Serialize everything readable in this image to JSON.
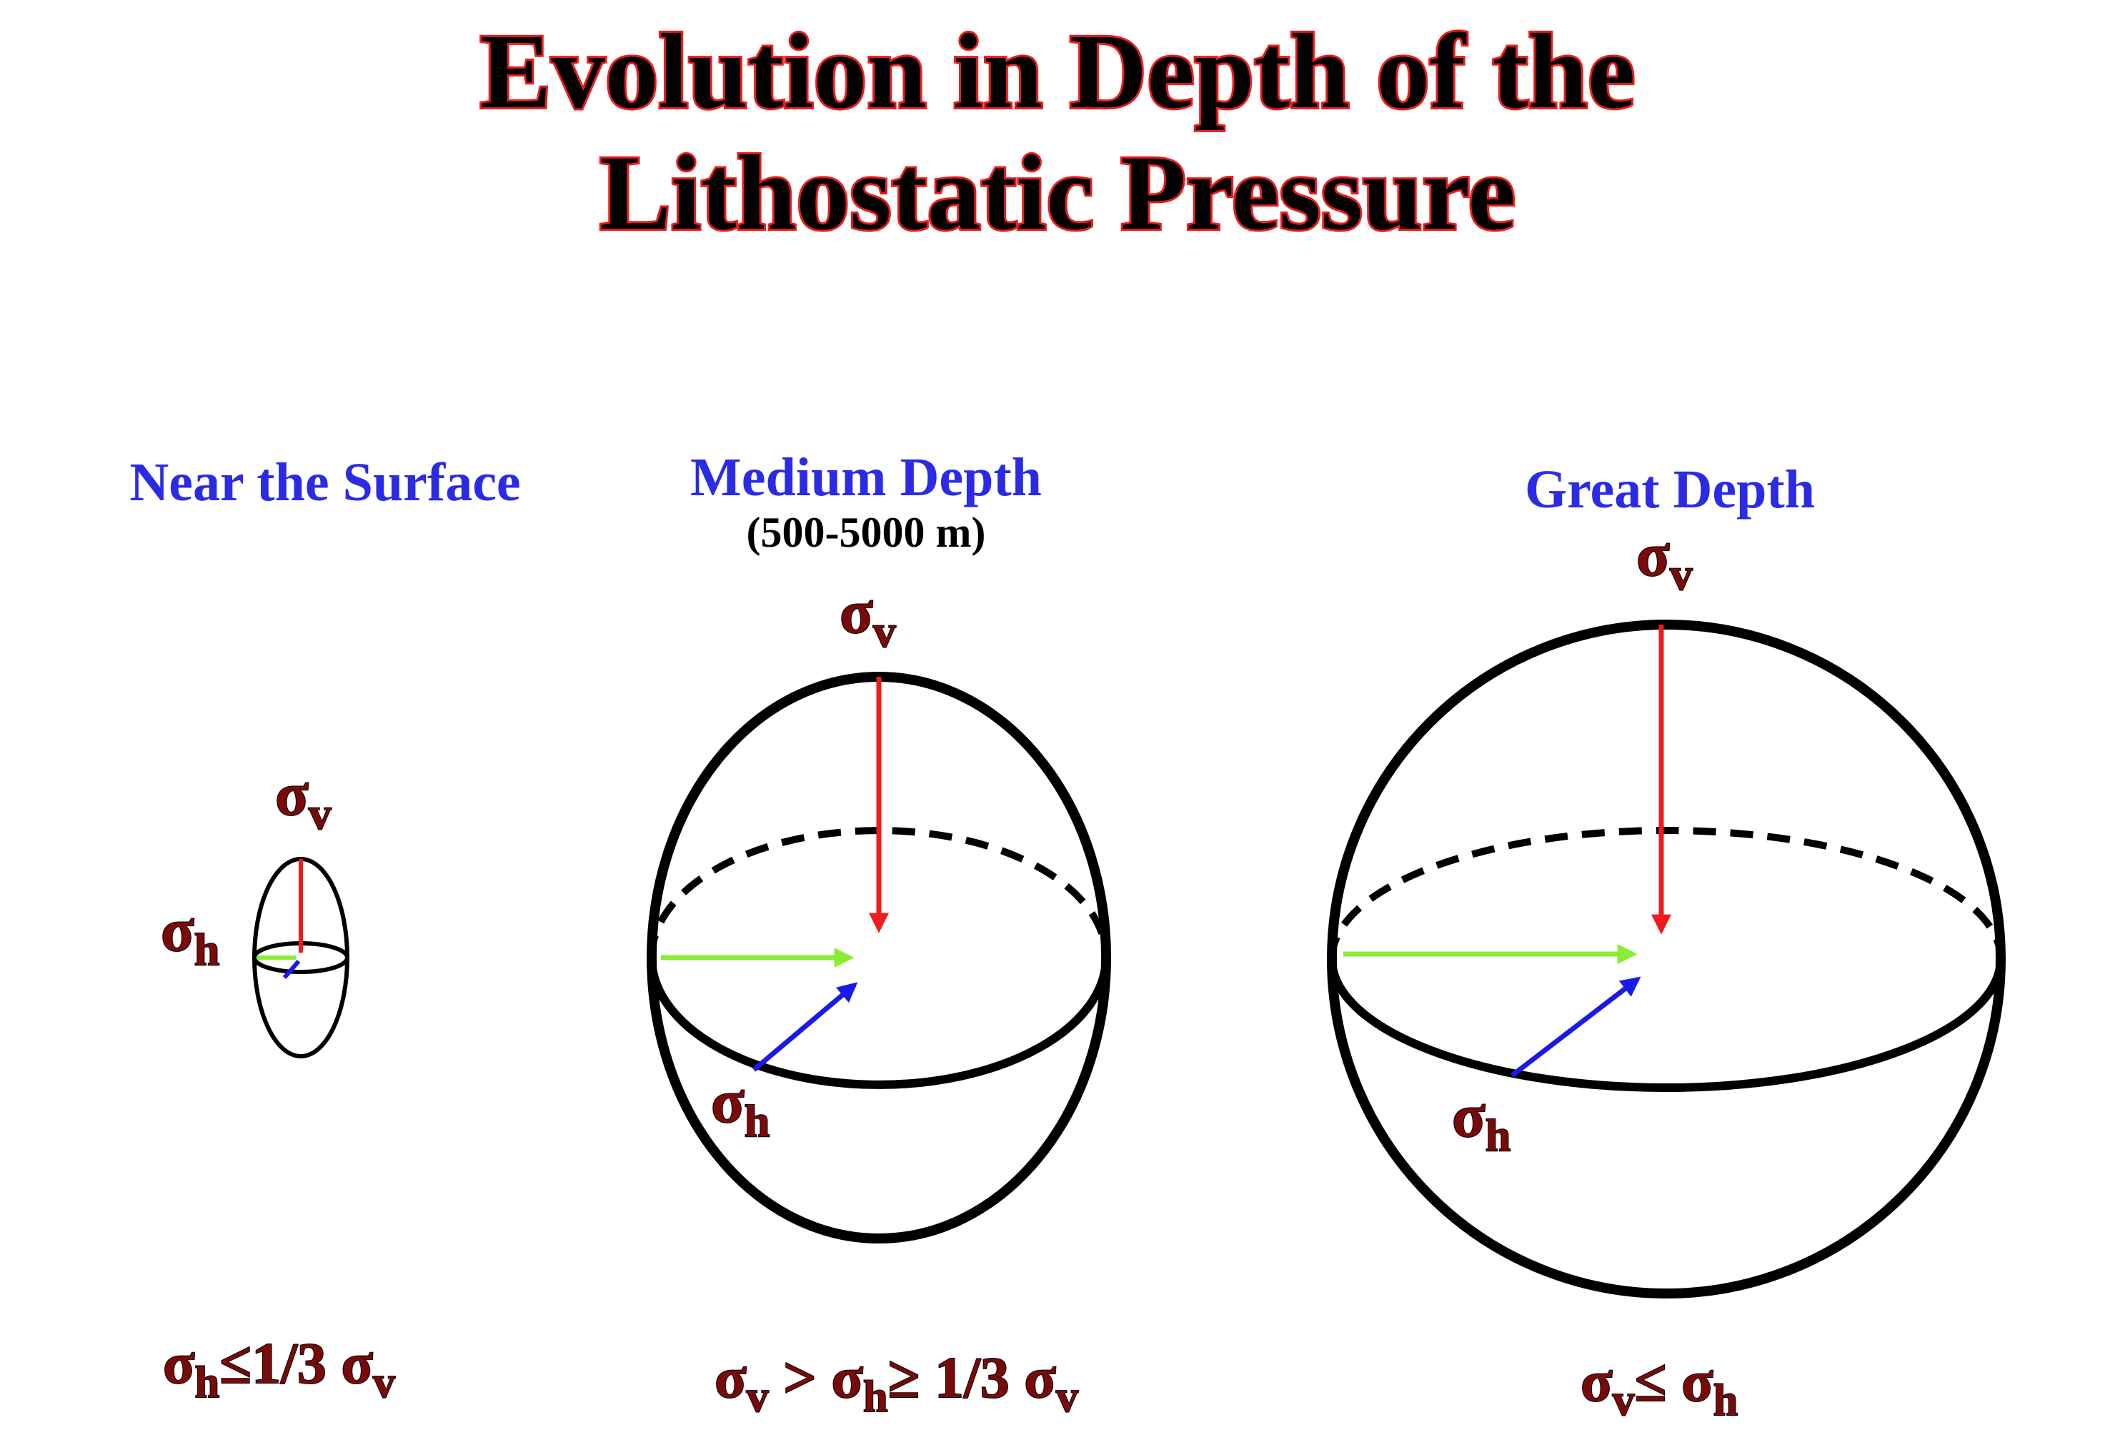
{
  "title": {
    "line1": "Evolution in Depth of the",
    "line2": "Lithostatic Pressure"
  },
  "symbols": {
    "sigma": "σ",
    "v": "v",
    "h": "h"
  },
  "panels": [
    {
      "heading": "Near the Surface",
      "subheading": "",
      "formula": {
        "p1": "σ",
        "s1": "h",
        "p2": "≤1/3 σ",
        "s2": "v"
      }
    },
    {
      "heading": "Medium Depth",
      "subheading": "(500-5000 m)",
      "formula": {
        "p1": "σ",
        "s1": "v",
        "p2": " > σ",
        "s2": "h",
        "p3": "≥ 1/3 σ",
        "s3": "v"
      }
    },
    {
      "heading": "Great Depth",
      "subheading": "",
      "formula": {
        "p1": "σ",
        "s1": "v",
        "p2": "≤ σ",
        "s2": "h"
      }
    }
  ],
  "colors": {
    "title_fill": "#000000",
    "title_outline": "#ee1c1c",
    "heading": "#2b2be6",
    "sigma_v_arrow": "#ee1c1c",
    "sigma_h_arrow_lateral": "#88ee33",
    "sigma_h_arrow_depth": "#1a1ae6",
    "symbol_text": "#7a0a0a",
    "outline": "#000000"
  }
}
